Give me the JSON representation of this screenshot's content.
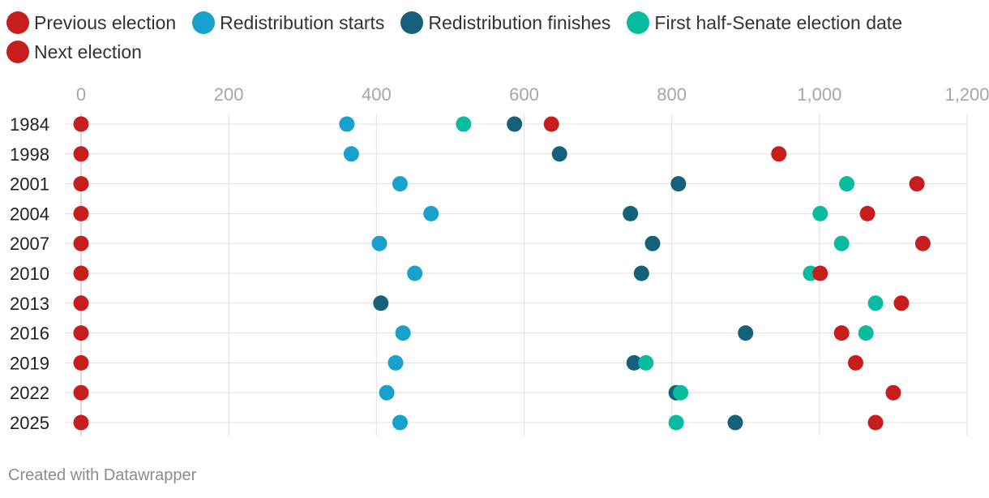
{
  "footer": {
    "credit": "Created with Datawrapper"
  },
  "colors": {
    "previous": "#c71e1d",
    "start": "#18a1cd",
    "finish": "#15607a",
    "senate": "#09bb9f",
    "next": "#c71e1d",
    "grid": "#e0e0e0"
  },
  "chart_data": {
    "type": "scatter",
    "title": "",
    "xlabel": "",
    "ylabel": "",
    "xlim": [
      0,
      1200
    ],
    "x_ticks": [
      0,
      200,
      400,
      600,
      800,
      1000,
      1200
    ],
    "x_tick_labels": [
      "0",
      "200",
      "400",
      "600",
      "800",
      "1,000",
      "1,200"
    ],
    "categories": [
      "1984",
      "1998",
      "2001",
      "2004",
      "2007",
      "2010",
      "2013",
      "2016",
      "2019",
      "2022",
      "2025"
    ],
    "legend_position": "top-left",
    "grid": true,
    "series": [
      {
        "name": "Previous election",
        "key": "previous",
        "values": [
          0,
          0,
          0,
          0,
          0,
          0,
          0,
          0,
          0,
          0,
          0
        ]
      },
      {
        "name": "Redistribution starts",
        "key": "start",
        "values": [
          360,
          366,
          432,
          474,
          404,
          452,
          null,
          436,
          426,
          414,
          432
        ]
      },
      {
        "name": "Redistribution finishes",
        "key": "finish",
        "values": [
          587,
          648,
          809,
          744,
          774,
          759,
          406,
          900,
          749,
          806,
          886
        ]
      },
      {
        "name": "First half-Senate election date",
        "key": "senate",
        "values": [
          518,
          null,
          1037,
          1001,
          1030,
          988,
          1076,
          1063,
          765,
          812,
          806
        ]
      },
      {
        "name": "Next election",
        "key": "next",
        "values": [
          637,
          945,
          1132,
          1065,
          1140,
          1001,
          1111,
          1030,
          1049,
          1100,
          1076
        ]
      }
    ]
  }
}
